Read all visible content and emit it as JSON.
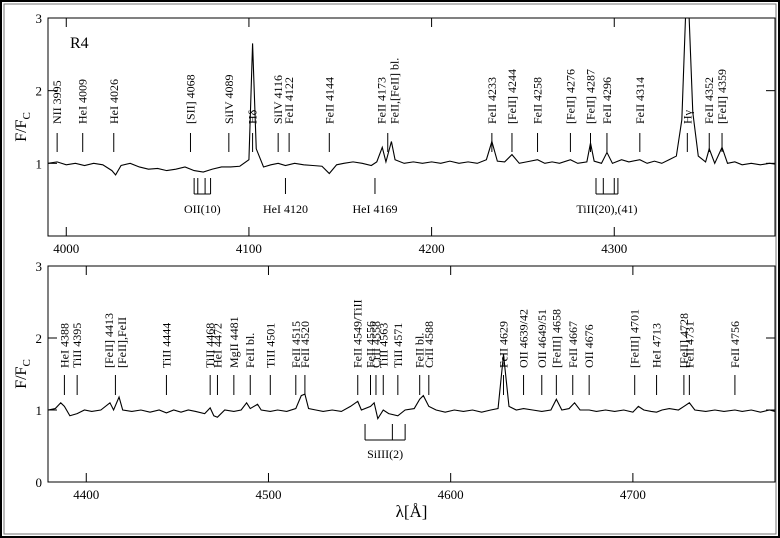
{
  "chart_data": [
    {
      "type": "line",
      "panel_label": "R4",
      "ylabel": "F/F",
      "ylabel_subscript": "C",
      "xlim": [
        3990,
        4388
      ],
      "ylim": [
        0,
        3
      ],
      "xticks": [
        4000,
        4100,
        4200,
        4300
      ],
      "yticks": [
        1,
        2,
        3
      ],
      "series": [
        {
          "color": "#000000",
          "x": [
            3990,
            3995,
            4000,
            4005,
            4010,
            4015,
            4020,
            4025,
            4027,
            4030,
            4035,
            4040,
            4045,
            4050,
            4055,
            4060,
            4065,
            4070,
            4075,
            4080,
            4085,
            4090,
            4095,
            4100,
            4102,
            4104,
            4108,
            4112,
            4116,
            4120,
            4125,
            4130,
            4135,
            4140,
            4144,
            4148,
            4152,
            4157,
            4162,
            4167,
            4170,
            4173,
            4175,
            4178,
            4180,
            4185,
            4190,
            4195,
            4200,
            4205,
            4210,
            4215,
            4220,
            4225,
            4230,
            4233,
            4236,
            4240,
            4244,
            4248,
            4252,
            4258,
            4262,
            4266,
            4270,
            4276,
            4280,
            4285,
            4287,
            4289,
            4293,
            4296,
            4299,
            4304,
            4308,
            4314,
            4318,
            4322,
            4326,
            4330,
            4334,
            4337,
            4339,
            4341,
            4343,
            4346,
            4350,
            4352,
            4355,
            4359,
            4362,
            4366,
            4370,
            4375,
            4380,
            4385,
            4388
          ],
          "values": [
            1.0,
            1.02,
            0.98,
            1.0,
            0.97,
            1.0,
            0.98,
            0.9,
            0.84,
            0.97,
            1.0,
            0.95,
            0.92,
            0.93,
            0.9,
            0.92,
            0.95,
            0.9,
            0.88,
            0.92,
            0.95,
            0.95,
            0.96,
            1.05,
            2.65,
            1.2,
            0.95,
            0.98,
            1.0,
            0.97,
            1.0,
            0.98,
            0.97,
            0.96,
            0.86,
            0.98,
            1.0,
            1.02,
            1.0,
            0.97,
            1.02,
            1.22,
            1.02,
            1.3,
            1.05,
            1.0,
            1.02,
            1.0,
            1.02,
            1.0,
            1.03,
            1.0,
            1.02,
            1.0,
            1.05,
            1.3,
            1.03,
            1.02,
            1.12,
            1.0,
            1.02,
            1.05,
            1.0,
            1.02,
            1.0,
            1.05,
            1.0,
            1.02,
            1.28,
            1.03,
            1.0,
            1.15,
            1.0,
            1.05,
            1.02,
            1.05,
            1.0,
            1.03,
            1.0,
            1.05,
            1.1,
            1.6,
            3.0,
            3.0,
            1.7,
            1.1,
            1.02,
            1.2,
            1.0,
            1.22,
            1.0,
            1.02,
            0.98,
            1.0,
            0.98,
            1.0,
            0.99
          ]
        }
      ],
      "annotations_above": [
        {
          "lines": [
            "NII 3995"
          ],
          "x": 3995
        },
        {
          "lines": [
            "HeI 4009"
          ],
          "x": 4009
        },
        {
          "lines": [
            "HeI 4026"
          ],
          "x": 4026
        },
        {
          "lines": [
            "[SII] 4068"
          ],
          "x": 4068
        },
        {
          "lines": [
            "SiIV 4089"
          ],
          "x": 4089
        },
        {
          "lines": [
            "Hδ"
          ],
          "x": 4102
        },
        {
          "lines": [
            "SiIV 4116"
          ],
          "x": 4116
        },
        {
          "lines": [
            "FeII 4122"
          ],
          "x": 4122
        },
        {
          "lines": [
            "FeII 4144"
          ],
          "x": 4144
        },
        {
          "lines": [
            "FeII 4173",
            "FeII,[FeII] bl."
          ],
          "x": 4176
        },
        {
          "lines": [
            "FeII 4233"
          ],
          "x": 4233
        },
        {
          "lines": [
            "[FeII] 4244"
          ],
          "x": 4244
        },
        {
          "lines": [
            "FeII 4258"
          ],
          "x": 4258
        },
        {
          "lines": [
            "[FeII] 4276"
          ],
          "x": 4276
        },
        {
          "lines": [
            "[FeII] 4287"
          ],
          "x": 4287
        },
        {
          "lines": [
            "FeII 4296"
          ],
          "x": 4296
        },
        {
          "lines": [
            "FeII 4314"
          ],
          "x": 4314
        },
        {
          "lines": [
            "Hγ"
          ],
          "x": 4340
        },
        {
          "lines": [
            "FeII 4352"
          ],
          "x": 4352
        },
        {
          "lines": [
            "[FeII] 4359"
          ],
          "x": 4359
        }
      ],
      "annotations_below": [
        {
          "text": "OII(10)",
          "marks": [
            4070,
            4072,
            4076,
            4079
          ]
        },
        {
          "text": "HeI 4120",
          "marks": [
            4120
          ]
        },
        {
          "text": "HeI 4169",
          "marks": [
            4169
          ]
        },
        {
          "text": "TiII(20),(41)",
          "marks": [
            4290,
            4294,
            4300,
            4302
          ]
        }
      ]
    },
    {
      "type": "line",
      "ylabel": "F/F",
      "ylabel_subscript": "C",
      "xlabel": "λ[Å]",
      "xlim": [
        4379,
        4778
      ],
      "ylim": [
        0,
        3
      ],
      "xticks": [
        4400,
        4500,
        4600,
        4700
      ],
      "yticks": [
        0,
        1,
        2,
        3
      ],
      "series": [
        {
          "color": "#000000",
          "x": [
            4379,
            4383,
            4386,
            4388,
            4391,
            4395,
            4399,
            4403,
            4408,
            4413,
            4415,
            4418,
            4420,
            4425,
            4430,
            4435,
            4440,
            4444,
            4448,
            4452,
            4456,
            4460,
            4465,
            4468,
            4470,
            4472,
            4476,
            4481,
            4485,
            4488,
            4490,
            4494,
            4496,
            4501,
            4505,
            4510,
            4515,
            4518,
            4520,
            4522,
            4526,
            4530,
            4535,
            4540,
            4545,
            4549,
            4551,
            4556,
            4558,
            4560,
            4563,
            4566,
            4571,
            4575,
            4580,
            4583,
            4585,
            4588,
            4592,
            4597,
            4602,
            4607,
            4612,
            4617,
            4622,
            4626,
            4629,
            4632,
            4636,
            4640,
            4645,
            4650,
            4655,
            4658,
            4661,
            4665,
            4668,
            4671,
            4676,
            4680,
            4685,
            4690,
            4695,
            4700,
            4703,
            4706,
            4710,
            4713,
            4716,
            4720,
            4725,
            4728,
            4731,
            4734,
            4740,
            4745,
            4750,
            4756,
            4760,
            4765,
            4770,
            4775,
            4778
          ],
          "values": [
            1.0,
            1.02,
            1.1,
            1.05,
            0.92,
            0.95,
            1.0,
            0.98,
            1.0,
            1.1,
            1.0,
            1.18,
            1.0,
            0.98,
            1.0,
            0.97,
            1.0,
            0.96,
            1.0,
            0.97,
            1.0,
            0.98,
            0.95,
            1.03,
            0.92,
            0.9,
            1.0,
            0.98,
            1.0,
            1.1,
            1.02,
            1.08,
            1.0,
            0.98,
            1.0,
            0.98,
            1.02,
            1.2,
            1.22,
            1.02,
            1.0,
            0.98,
            1.0,
            0.98,
            1.05,
            1.12,
            1.0,
            1.05,
            1.1,
            0.88,
            1.0,
            0.95,
            0.92,
            1.0,
            1.02,
            1.15,
            1.2,
            1.05,
            1.0,
            0.97,
            1.0,
            0.98,
            1.0,
            0.97,
            1.0,
            1.02,
            1.77,
            1.05,
            1.0,
            1.02,
            1.0,
            0.98,
            1.0,
            1.15,
            1.0,
            1.02,
            1.1,
            1.0,
            1.0,
            0.98,
            1.0,
            0.98,
            1.0,
            0.97,
            1.05,
            1.0,
            0.98,
            0.97,
            1.0,
            1.02,
            1.0,
            1.05,
            1.1,
            1.0,
            0.98,
            1.0,
            0.98,
            1.0,
            0.98,
            1.0,
            0.97,
            1.0,
            0.98
          ]
        }
      ],
      "annotations_above": [
        {
          "lines": [
            "HeI 4388"
          ],
          "x": 4388
        },
        {
          "lines": [
            "TiII 4395"
          ],
          "x": 4395
        },
        {
          "lines": [
            "[FeII] 4413",
            "[FeII],FeII"
          ],
          "x": 4416
        },
        {
          "lines": [
            "TiII 4444"
          ],
          "x": 4444
        },
        {
          "lines": [
            "TiII 4468"
          ],
          "x": 4468
        },
        {
          "lines": [
            "HeI 4472"
          ],
          "x": 4472
        },
        {
          "lines": [
            "MgII 4481"
          ],
          "x": 4481
        },
        {
          "lines": [
            "FeII bl."
          ],
          "x": 4490
        },
        {
          "lines": [
            "TiII 4501"
          ],
          "x": 4501
        },
        {
          "lines": [
            "FeII 4515"
          ],
          "x": 4515
        },
        {
          "lines": [
            "FeII 4520"
          ],
          "x": 4520
        },
        {
          "lines": [
            "FeII 4549/TiII"
          ],
          "x": 4549
        },
        {
          "lines": [
            "FeII 4556"
          ],
          "x": 4556
        },
        {
          "lines": [
            "CrII 4558"
          ],
          "x": 4559
        },
        {
          "lines": [
            "TiII 4563"
          ],
          "x": 4563
        },
        {
          "lines": [
            "TiII 4571"
          ],
          "x": 4571
        },
        {
          "lines": [
            "FeII bl."
          ],
          "x": 4583
        },
        {
          "lines": [
            "CrII 4588"
          ],
          "x": 4588
        },
        {
          "lines": [
            "FeII 4629"
          ],
          "x": 4629
        },
        {
          "lines": [
            "OII 4639/42"
          ],
          "x": 4640
        },
        {
          "lines": [
            "OII 4649/51"
          ],
          "x": 4650
        },
        {
          "lines": [
            "[FeIII] 4658"
          ],
          "x": 4658
        },
        {
          "lines": [
            "FeII 4667"
          ],
          "x": 4667
        },
        {
          "lines": [
            "OII 4676"
          ],
          "x": 4676
        },
        {
          "lines": [
            "[FeIII] 4701"
          ],
          "x": 4701
        },
        {
          "lines": [
            "HeI 4713"
          ],
          "x": 4713
        },
        {
          "lines": [
            "[FeII] 4728"
          ],
          "x": 4728
        },
        {
          "lines": [
            "FeII 4731"
          ],
          "x": 4731
        },
        {
          "lines": [
            "FeII 4756"
          ],
          "x": 4756
        }
      ],
      "annotations_below": [
        {
          "text": "SiIII(2)",
          "marks": [
            4553,
            4568,
            4575
          ]
        }
      ]
    }
  ]
}
